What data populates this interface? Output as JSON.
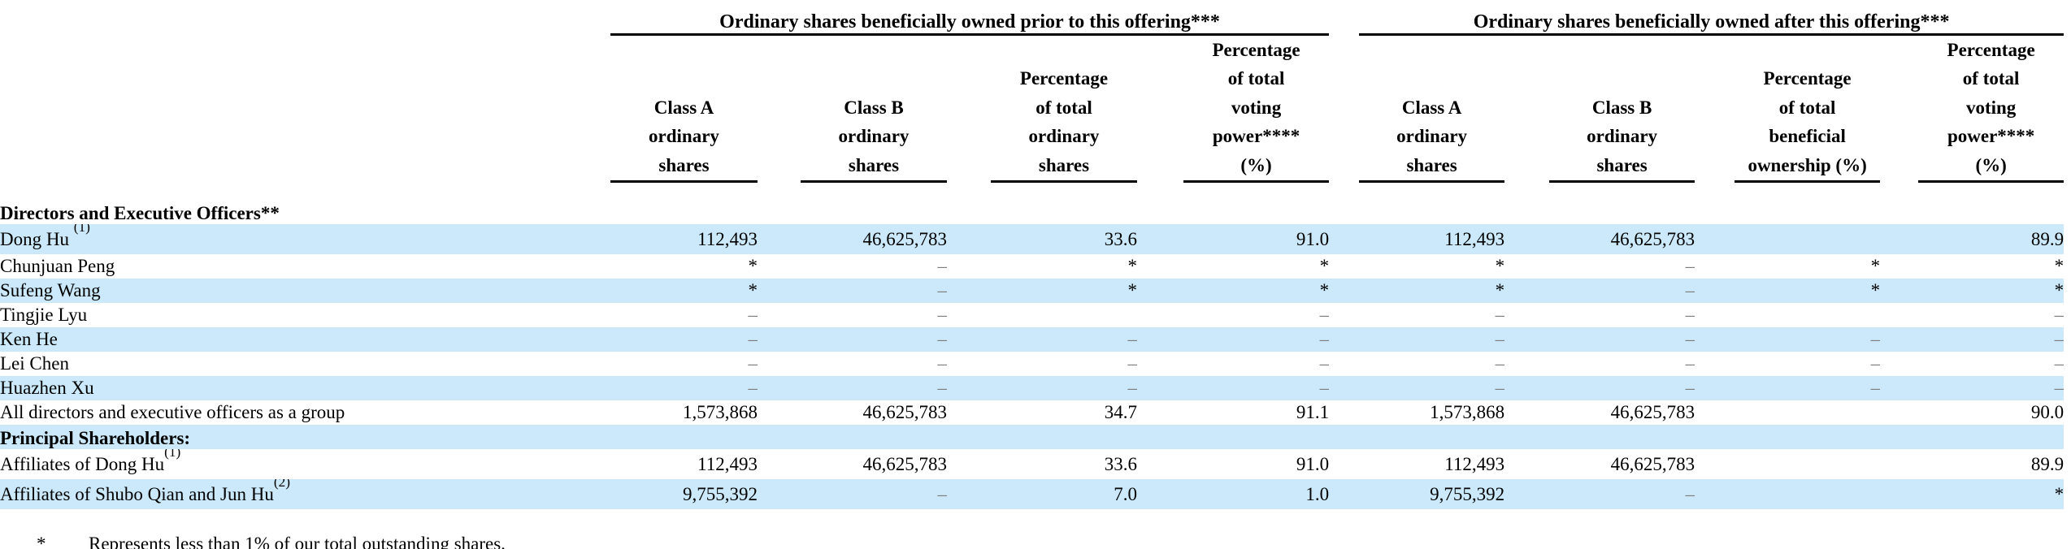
{
  "table": {
    "groups": [
      {
        "title": "Ordinary shares beneficially owned prior to this offering***"
      },
      {
        "title": "Ordinary shares beneficially owned after this offering***"
      }
    ],
    "columns": [
      "Class A\nordinary\nshares",
      "Class B\nordinary\nshares",
      "Percentage\nof total\nordinary\nshares",
      "Percentage\nof total\nvoting\npower****\n(%)",
      "Class A\nordinary\nshares",
      "Class B\nordinary\nshares",
      "Percentage\nof total\nbeneficial\nownership (%)",
      "Percentage\nof total\nvoting\npower****\n(%)"
    ],
    "rows": [
      {
        "type": "section",
        "label": "Directors and Executive Officers**",
        "shaded": false
      },
      {
        "type": "data",
        "label": "Dong Hu",
        "sup": "(1)",
        "sup_space": true,
        "shaded": true,
        "cells": [
          "112,493",
          "46,625,783",
          "33.6",
          "91.0",
          "112,493",
          "46,625,783",
          "",
          "89.9"
        ]
      },
      {
        "type": "data",
        "label": "Chunjuan Peng",
        "shaded": false,
        "cells": [
          "*",
          "–",
          "*",
          "*",
          "*",
          "–",
          "*",
          "*"
        ]
      },
      {
        "type": "data",
        "label": "Sufeng Wang",
        "shaded": true,
        "cells": [
          "*",
          "–",
          "*",
          "*",
          "*",
          "–",
          "*",
          "*"
        ]
      },
      {
        "type": "data",
        "label": "Tingjie Lyu",
        "shaded": false,
        "cells": [
          "–",
          "–",
          "",
          "–",
          "–",
          "–",
          "",
          "–"
        ]
      },
      {
        "type": "data",
        "label": "Ken He",
        "shaded": true,
        "cells": [
          "–",
          "–",
          "–",
          "–",
          "–",
          "–",
          "–",
          "–"
        ]
      },
      {
        "type": "data",
        "label": "Lei Chen",
        "shaded": false,
        "cells": [
          "–",
          "–",
          "–",
          "–",
          "–",
          "–",
          "–",
          "–"
        ]
      },
      {
        "type": "data",
        "label": "Huazhen Xu",
        "shaded": true,
        "cells": [
          "–",
          "–",
          "–",
          "–",
          "–",
          "–",
          "–",
          "–"
        ]
      },
      {
        "type": "data",
        "label": "All directors and executive officers as a group",
        "shaded": false,
        "cells": [
          "1,573,868",
          "46,625,783",
          "34.7",
          "91.1",
          "1,573,868",
          "46,625,783",
          "",
          "90.0"
        ]
      },
      {
        "type": "section",
        "label": "Principal Shareholders:",
        "shaded": true
      },
      {
        "type": "data",
        "label": "Affiliates of Dong Hu",
        "sup": "(1)",
        "sup_space": false,
        "shaded": false,
        "cells": [
          "112,493",
          "46,625,783",
          "33.6",
          "91.0",
          "112,493",
          "46,625,783",
          "",
          "89.9"
        ]
      },
      {
        "type": "data",
        "label": "Affiliates of Shubo Qian and Jun Hu",
        "sup": "(2)",
        "sup_space": false,
        "shaded": true,
        "cells": [
          "9,755,392",
          "–",
          "7.0",
          "1.0",
          "9,755,392",
          "–",
          "",
          "*"
        ]
      }
    ]
  },
  "footnote": {
    "symbol": "*",
    "text": "Represents less than 1% of our total outstanding shares."
  },
  "colors": {
    "stripe": "#cbe9fa",
    "rule": "#000000",
    "dash": "#7d7d7d"
  }
}
